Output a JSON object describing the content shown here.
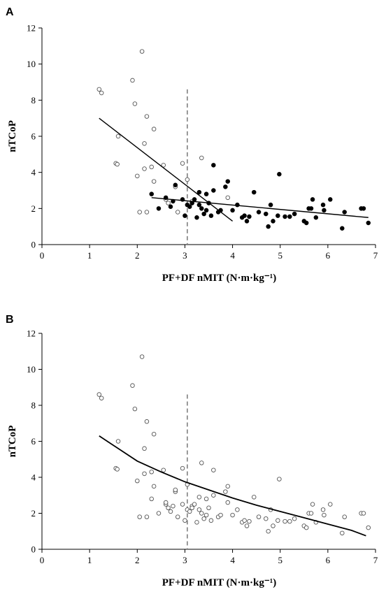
{
  "chart_data": [
    {
      "panel": "A",
      "type": "scatter",
      "xlabel": "PF+DF nMIT (N·m·kg⁻¹)",
      "ylabel": "nTCoP",
      "xlim": [
        0,
        7
      ],
      "ylim": [
        0,
        12
      ],
      "xticks": [
        "0",
        "1",
        "2",
        "3",
        "4",
        "5",
        "6",
        "7"
      ],
      "yticks": [
        "0",
        "2",
        "4",
        "6",
        "8",
        "10",
        "12"
      ],
      "grid": false,
      "legend": "none",
      "threshold_x": 3.05,
      "series": [
        {
          "marker": "open-circle",
          "points": [
            [
              1.2,
              8.6
            ],
            [
              1.25,
              8.4
            ],
            [
              1.55,
              4.5
            ],
            [
              1.58,
              4.45
            ],
            [
              1.6,
              6.0
            ],
            [
              1.9,
              9.1
            ],
            [
              1.95,
              7.8
            ],
            [
              2.0,
              3.8
            ],
            [
              2.05,
              1.8
            ],
            [
              2.1,
              10.7
            ],
            [
              2.15,
              4.2
            ],
            [
              2.15,
              5.6
            ],
            [
              2.2,
              7.1
            ],
            [
              2.2,
              1.8
            ],
            [
              2.35,
              6.4
            ],
            [
              2.35,
              3.5
            ],
            [
              2.3,
              4.3
            ],
            [
              2.55,
              4.4
            ],
            [
              2.6,
              2.5
            ],
            [
              2.65,
              2.3
            ],
            [
              2.8,
              3.2
            ],
            [
              2.85,
              1.8
            ],
            [
              2.95,
              4.5
            ],
            [
              3.05,
              3.6
            ],
            [
              3.15,
              2.4
            ],
            [
              3.35,
              4.8
            ],
            [
              3.9,
              2.6
            ]
          ]
        },
        {
          "marker": "filled-circle",
          "points": [
            [
              2.3,
              2.8
            ],
            [
              2.45,
              2.0
            ],
            [
              2.6,
              2.6
            ],
            [
              2.7,
              2.1
            ],
            [
              2.75,
              2.4
            ],
            [
              2.8,
              3.3
            ],
            [
              2.95,
              2.5
            ],
            [
              3.0,
              1.6
            ],
            [
              3.05,
              2.2
            ],
            [
              3.1,
              2.1
            ],
            [
              3.15,
              2.3
            ],
            [
              3.2,
              2.5
            ],
            [
              3.25,
              1.5
            ],
            [
              3.3,
              2.2
            ],
            [
              3.3,
              2.9
            ],
            [
              3.35,
              2.0
            ],
            [
              3.4,
              1.7
            ],
            [
              3.45,
              1.9
            ],
            [
              3.45,
              2.8
            ],
            [
              3.5,
              2.3
            ],
            [
              3.55,
              1.6
            ],
            [
              3.6,
              3.0
            ],
            [
              3.6,
              4.4
            ],
            [
              3.7,
              1.8
            ],
            [
              3.75,
              1.9
            ],
            [
              3.85,
              3.2
            ],
            [
              3.9,
              3.5
            ],
            [
              4.0,
              1.9
            ],
            [
              4.1,
              2.2
            ],
            [
              4.2,
              1.5
            ],
            [
              4.25,
              1.6
            ],
            [
              4.3,
              1.3
            ],
            [
              4.35,
              1.55
            ],
            [
              4.45,
              2.9
            ],
            [
              4.55,
              1.8
            ],
            [
              4.7,
              1.7
            ],
            [
              4.75,
              1.0
            ],
            [
              4.8,
              2.2
            ],
            [
              4.85,
              1.3
            ],
            [
              4.95,
              1.6
            ],
            [
              4.98,
              3.9
            ],
            [
              5.1,
              1.55
            ],
            [
              5.2,
              1.55
            ],
            [
              5.3,
              1.7
            ],
            [
              5.5,
              1.3
            ],
            [
              5.55,
              1.2
            ],
            [
              5.6,
              2.0
            ],
            [
              5.65,
              2.0
            ],
            [
              5.68,
              2.5
            ],
            [
              5.75,
              1.5
            ],
            [
              5.9,
              2.2
            ],
            [
              5.92,
              1.9
            ],
            [
              6.05,
              2.5
            ],
            [
              6.3,
              0.9
            ],
            [
              6.35,
              1.8
            ],
            [
              6.7,
              2.0
            ],
            [
              6.75,
              2.0
            ],
            [
              6.85,
              1.2
            ]
          ]
        }
      ],
      "fit_lines": [
        {
          "kind": "linear",
          "points": [
            [
              1.2,
              7.0
            ],
            [
              4.0,
              1.3
            ]
          ]
        },
        {
          "kind": "linear",
          "points": [
            [
              2.3,
              2.6
            ],
            [
              6.85,
              1.5
            ]
          ]
        }
      ]
    },
    {
      "panel": "B",
      "type": "scatter",
      "xlabel": "PF+DF nMIT (N·m·kg⁻¹)",
      "ylabel": "nTCoP",
      "xlim": [
        0,
        7
      ],
      "ylim": [
        0,
        12
      ],
      "xticks": [
        "0",
        "1",
        "2",
        "3",
        "4",
        "5",
        "6",
        "7"
      ],
      "yticks": [
        "0",
        "2",
        "4",
        "6",
        "8",
        "10",
        "12"
      ],
      "grid": false,
      "legend": "none",
      "threshold_x": 3.05,
      "series": [
        {
          "marker": "open-circle",
          "points": [
            [
              1.2,
              8.6
            ],
            [
              1.25,
              8.4
            ],
            [
              1.55,
              4.5
            ],
            [
              1.58,
              4.45
            ],
            [
              1.6,
              6.0
            ],
            [
              1.9,
              9.1
            ],
            [
              1.95,
              7.8
            ],
            [
              2.0,
              3.8
            ],
            [
              2.05,
              1.8
            ],
            [
              2.1,
              10.7
            ],
            [
              2.15,
              4.2
            ],
            [
              2.15,
              5.6
            ],
            [
              2.2,
              7.1
            ],
            [
              2.2,
              1.8
            ],
            [
              2.35,
              6.4
            ],
            [
              2.35,
              3.5
            ],
            [
              2.3,
              4.3
            ],
            [
              2.55,
              4.4
            ],
            [
              2.6,
              2.5
            ],
            [
              2.65,
              2.3
            ],
            [
              2.8,
              3.2
            ],
            [
              2.85,
              1.8
            ],
            [
              2.95,
              4.5
            ],
            [
              3.05,
              3.6
            ],
            [
              3.15,
              2.4
            ],
            [
              3.35,
              4.8
            ],
            [
              3.9,
              2.6
            ],
            [
              2.3,
              2.8
            ],
            [
              2.45,
              2.0
            ],
            [
              2.6,
              2.6
            ],
            [
              2.7,
              2.1
            ],
            [
              2.75,
              2.4
            ],
            [
              2.8,
              3.3
            ],
            [
              2.95,
              2.5
            ],
            [
              3.0,
              1.6
            ],
            [
              3.05,
              2.2
            ],
            [
              3.1,
              2.1
            ],
            [
              3.15,
              2.3
            ],
            [
              3.2,
              2.5
            ],
            [
              3.25,
              1.5
            ],
            [
              3.3,
              2.2
            ],
            [
              3.3,
              2.9
            ],
            [
              3.35,
              2.0
            ],
            [
              3.4,
              1.7
            ],
            [
              3.45,
              1.9
            ],
            [
              3.45,
              2.8
            ],
            [
              3.5,
              2.3
            ],
            [
              3.55,
              1.6
            ],
            [
              3.6,
              3.0
            ],
            [
              3.6,
              4.4
            ],
            [
              3.7,
              1.8
            ],
            [
              3.75,
              1.9
            ],
            [
              3.85,
              3.2
            ],
            [
              3.9,
              3.5
            ],
            [
              4.0,
              1.9
            ],
            [
              4.1,
              2.2
            ],
            [
              4.2,
              1.5
            ],
            [
              4.25,
              1.6
            ],
            [
              4.3,
              1.3
            ],
            [
              4.35,
              1.55
            ],
            [
              4.45,
              2.9
            ],
            [
              4.55,
              1.8
            ],
            [
              4.7,
              1.7
            ],
            [
              4.75,
              1.0
            ],
            [
              4.8,
              2.2
            ],
            [
              4.85,
              1.3
            ],
            [
              4.95,
              1.6
            ],
            [
              4.98,
              3.9
            ],
            [
              5.1,
              1.55
            ],
            [
              5.2,
              1.55
            ],
            [
              5.3,
              1.7
            ],
            [
              5.5,
              1.3
            ],
            [
              5.55,
              1.2
            ],
            [
              5.6,
              2.0
            ],
            [
              5.65,
              2.0
            ],
            [
              5.68,
              2.5
            ],
            [
              5.75,
              1.5
            ],
            [
              5.9,
              2.2
            ],
            [
              5.92,
              1.9
            ],
            [
              6.05,
              2.5
            ],
            [
              6.3,
              0.9
            ],
            [
              6.35,
              1.8
            ],
            [
              6.7,
              2.0
            ],
            [
              6.75,
              2.0
            ],
            [
              6.85,
              1.2
            ]
          ]
        }
      ],
      "fit_lines": [
        {
          "kind": "curve",
          "points": [
            [
              1.2,
              6.3
            ],
            [
              1.6,
              5.6
            ],
            [
              2.0,
              4.9
            ],
            [
              2.5,
              4.3
            ],
            [
              3.0,
              3.75
            ],
            [
              3.5,
              3.3
            ],
            [
              4.0,
              2.85
            ],
            [
              4.5,
              2.45
            ],
            [
              5.0,
              2.1
            ],
            [
              5.5,
              1.75
            ],
            [
              6.0,
              1.4
            ],
            [
              6.5,
              1.05
            ],
            [
              6.8,
              0.75
            ]
          ]
        }
      ]
    }
  ]
}
